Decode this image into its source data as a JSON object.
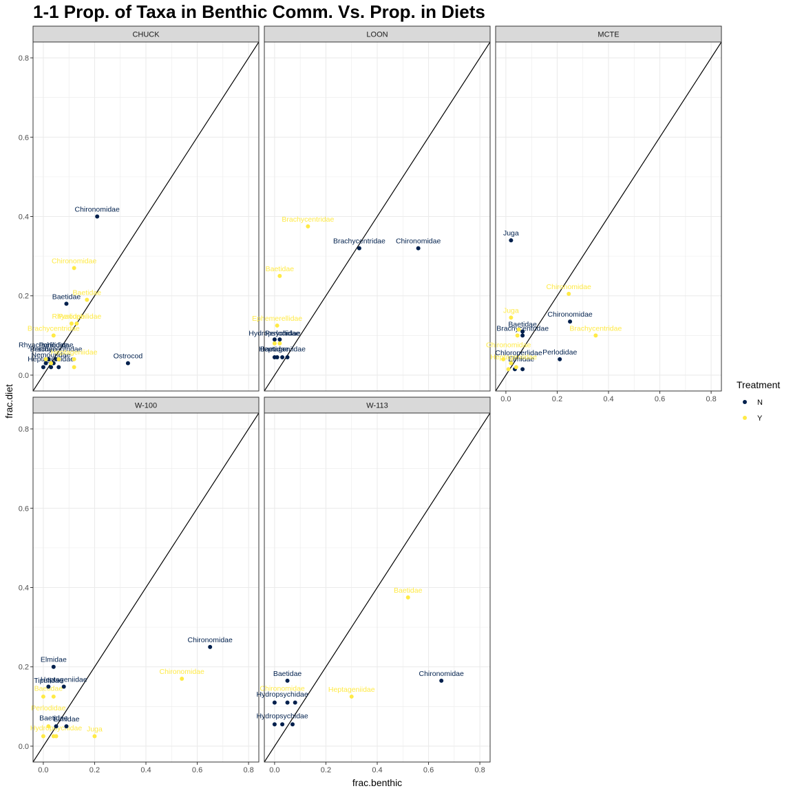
{
  "chart_data": {
    "type": "scatter",
    "title": "1-1 Prop. of Taxa in Benthic Comm. Vs. Prop. in Diets",
    "xlabel": "frac.benthic",
    "ylabel": "frac.diet",
    "xlim": [
      -0.04,
      0.84
    ],
    "ylim": [
      -0.04,
      0.84
    ],
    "x_ticks": [
      "0.0",
      "0.2",
      "0.4",
      "0.6",
      "0.8"
    ],
    "y_ticks": [
      "0.0",
      "0.2",
      "0.4",
      "0.6",
      "0.8"
    ],
    "reference_line": "y = x",
    "grid": true,
    "legend": {
      "title": "Treatment",
      "placement": "right",
      "entries": [
        {
          "name": "N",
          "color": "#00204D"
        },
        {
          "name": "Y",
          "color": "#FFEA46"
        }
      ]
    },
    "panels": [
      {
        "name": "CHUCK",
        "points": [
          {
            "x": 0.21,
            "y": 0.4,
            "t": "N",
            "label": "Chironomidae"
          },
          {
            "x": 0.09,
            "y": 0.18,
            "t": "N",
            "label": "Baetidae"
          },
          {
            "x": 0.33,
            "y": 0.03,
            "t": "N",
            "label": "Ostrocod"
          },
          {
            "x": 0.0,
            "y": 0.02,
            "t": "N",
            "label": ""
          },
          {
            "x": 0.03,
            "y": 0.02,
            "t": "N",
            "label": ""
          },
          {
            "x": 0.06,
            "y": 0.02,
            "t": "N",
            "label": ""
          },
          {
            "x": 0.02,
            "y": 0.04,
            "t": "N",
            "label": ""
          },
          {
            "x": 0.04,
            "y": 0.03,
            "t": "N",
            "label": ""
          },
          {
            "x": 0.01,
            "y": 0.03,
            "t": "N",
            "label": ""
          },
          {
            "x": 0.05,
            "y": 0.04,
            "t": "N",
            "label": ""
          },
          {
            "x": 0.12,
            "y": 0.27,
            "t": "Y",
            "label": "Chironomidae"
          },
          {
            "x": 0.17,
            "y": 0.19,
            "t": "Y",
            "label": "Baetidae"
          },
          {
            "x": 0.11,
            "y": 0.13,
            "t": "Y",
            "label": "Perlidae"
          },
          {
            "x": 0.13,
            "y": 0.13,
            "t": "Y",
            "label": "Rhyacophilidae"
          },
          {
            "x": 0.04,
            "y": 0.1,
            "t": "Y",
            "label": "Brachycentridae"
          },
          {
            "x": 0.12,
            "y": 0.04,
            "t": "Y",
            "label": "Heptageniidae"
          },
          {
            "x": 0.12,
            "y": 0.02,
            "t": "Y",
            "label": ""
          },
          {
            "x": 0.03,
            "y": 0.03,
            "t": "Y",
            "label": ""
          },
          {
            "x": 0.06,
            "y": 0.04,
            "t": "Y",
            "label": ""
          },
          {
            "x": 0.01,
            "y": 0.04,
            "t": "Y",
            "label": ""
          }
        ],
        "extra_labels": [
          {
            "x": 0.05,
            "y": 0.07,
            "t": "N",
            "label": "Perlodidae"
          },
          {
            "x": 0.0,
            "y": 0.07,
            "t": "N",
            "label": "Rhyacophilidae"
          },
          {
            "x": 0.05,
            "y": 0.06,
            "t": "N",
            "label": "Brachycentridae"
          },
          {
            "x": 0.0,
            "y": 0.06,
            "t": "N",
            "label": "Perlidae"
          },
          {
            "x": 0.03,
            "y": 0.045,
            "t": "N",
            "label": "Nemouridae"
          },
          {
            "x": 0.03,
            "y": 0.035,
            "t": "N",
            "label": "Heptageniidae"
          }
        ]
      },
      {
        "name": "LOON",
        "points": [
          {
            "x": 0.33,
            "y": 0.32,
            "t": "N",
            "label": "Brachycentridae"
          },
          {
            "x": 0.56,
            "y": 0.32,
            "t": "N",
            "label": "Chironomidae"
          },
          {
            "x": 0.0,
            "y": 0.09,
            "t": "N",
            "label": ""
          },
          {
            "x": 0.02,
            "y": 0.09,
            "t": "N",
            "label": ""
          },
          {
            "x": 0.0,
            "y": 0.045,
            "t": "N",
            "label": ""
          },
          {
            "x": 0.01,
            "y": 0.045,
            "t": "N",
            "label": ""
          },
          {
            "x": 0.03,
            "y": 0.045,
            "t": "N",
            "label": ""
          },
          {
            "x": 0.05,
            "y": 0.045,
            "t": "N",
            "label": ""
          },
          {
            "x": 0.13,
            "y": 0.375,
            "t": "Y",
            "label": "Brachycentridae"
          },
          {
            "x": 0.02,
            "y": 0.25,
            "t": "Y",
            "label": "Baetidae"
          },
          {
            "x": 0.01,
            "y": 0.125,
            "t": "Y",
            "label": "Ephemerellidae"
          },
          {
            "x": 0.0,
            "y": 0.08,
            "t": "Y",
            "label": ""
          },
          {
            "x": 0.02,
            "y": 0.08,
            "t": "Y",
            "label": ""
          }
        ],
        "extra_labels": [
          {
            "x": 0.0,
            "y": 0.1,
            "t": "N",
            "label": "Hydropsychidae"
          },
          {
            "x": 0.03,
            "y": 0.1,
            "t": "N",
            "label": "Perlodidae"
          },
          {
            "x": 0.0,
            "y": 0.06,
            "t": "N",
            "label": "Baetidae"
          },
          {
            "x": 0.03,
            "y": 0.06,
            "t": "N",
            "label": "Heptageniidae"
          }
        ]
      },
      {
        "name": "MCTE",
        "points": [
          {
            "x": 0.02,
            "y": 0.34,
            "t": "N",
            "label": "Juga"
          },
          {
            "x": 0.25,
            "y": 0.135,
            "t": "N",
            "label": "Chironomidae"
          },
          {
            "x": 0.065,
            "y": 0.11,
            "t": "N",
            "label": "Baetidae"
          },
          {
            "x": 0.065,
            "y": 0.1,
            "t": "N",
            "label": "Brachycentridae"
          },
          {
            "x": 0.21,
            "y": 0.04,
            "t": "N",
            "label": "Perlodidae"
          },
          {
            "x": 0.035,
            "y": 0.015,
            "t": "N",
            "label": ""
          },
          {
            "x": 0.065,
            "y": 0.015,
            "t": "N",
            "label": ""
          },
          {
            "x": 0.245,
            "y": 0.205,
            "t": "Y",
            "label": "Chironomidae"
          },
          {
            "x": 0.02,
            "y": 0.145,
            "t": "Y",
            "label": "Juga"
          },
          {
            "x": 0.35,
            "y": 0.1,
            "t": "Y",
            "label": "Brachycentridae"
          },
          {
            "x": 0.045,
            "y": 0.1,
            "t": "Y",
            "label": ""
          },
          {
            "x": 0.05,
            "y": 0.115,
            "t": "Y",
            "label": ""
          },
          {
            "x": -0.01,
            "y": 0.04,
            "t": "Y",
            "label": ""
          },
          {
            "x": 0.02,
            "y": 0.03,
            "t": "Y",
            "label": ""
          },
          {
            "x": 0.04,
            "y": 0.02,
            "t": "Y",
            "label": ""
          },
          {
            "x": 0.01,
            "y": 0.015,
            "t": "Y",
            "label": ""
          }
        ],
        "extra_labels": [
          {
            "x": 0.05,
            "y": 0.05,
            "t": "N",
            "label": "Chloroperlidae"
          },
          {
            "x": 0.06,
            "y": 0.035,
            "t": "N",
            "label": "Elmidae"
          },
          {
            "x": 0.01,
            "y": 0.07,
            "t": "Y",
            "label": "Chironomidae"
          },
          {
            "x": 0.03,
            "y": 0.04,
            "t": "Y",
            "label": "Heptageniidae"
          }
        ]
      },
      {
        "name": "W-100",
        "points": [
          {
            "x": 0.65,
            "y": 0.25,
            "t": "N",
            "label": "Chironomidae"
          },
          {
            "x": 0.04,
            "y": 0.2,
            "t": "N",
            "label": "Elmidae"
          },
          {
            "x": 0.08,
            "y": 0.15,
            "t": "N",
            "label": "Heptageniidae"
          },
          {
            "x": 0.02,
            "y": 0.15,
            "t": "N",
            "label": ""
          },
          {
            "x": 0.05,
            "y": 0.05,
            "t": "N",
            "label": ""
          },
          {
            "x": 0.09,
            "y": 0.05,
            "t": "N",
            "label": "Elmidae"
          },
          {
            "x": 0.54,
            "y": 0.17,
            "t": "Y",
            "label": "Chironomidae"
          },
          {
            "x": 0.2,
            "y": 0.025,
            "t": "Y",
            "label": "Juga"
          },
          {
            "x": 0.0,
            "y": 0.125,
            "t": "Y",
            "label": ""
          },
          {
            "x": 0.04,
            "y": 0.125,
            "t": "Y",
            "label": ""
          },
          {
            "x": 0.0,
            "y": 0.025,
            "t": "Y",
            "label": ""
          },
          {
            "x": 0.04,
            "y": 0.025,
            "t": "Y",
            "label": ""
          },
          {
            "x": 0.05,
            "y": 0.025,
            "t": "Y",
            "label": ""
          },
          {
            "x": 0.02,
            "y": 0.05,
            "t": "Y",
            "label": ""
          }
        ],
        "extra_labels": [
          {
            "x": 0.02,
            "y": 0.16,
            "t": "N",
            "label": "Tipulidae"
          },
          {
            "x": 0.04,
            "y": 0.065,
            "t": "N",
            "label": "Baetidae"
          },
          {
            "x": 0.02,
            "y": 0.14,
            "t": "Y",
            "label": "Baetidae"
          },
          {
            "x": 0.02,
            "y": 0.09,
            "t": "Y",
            "label": "Perlodidae"
          },
          {
            "x": 0.05,
            "y": 0.04,
            "t": "Y",
            "label": "Hydropsychidae"
          }
        ]
      },
      {
        "name": "W-113",
        "points": [
          {
            "x": 0.05,
            "y": 0.165,
            "t": "N",
            "label": "Baetidae"
          },
          {
            "x": 0.65,
            "y": 0.165,
            "t": "N",
            "label": "Chironomidae"
          },
          {
            "x": 0.0,
            "y": 0.11,
            "t": "N",
            "label": ""
          },
          {
            "x": 0.05,
            "y": 0.11,
            "t": "N",
            "label": ""
          },
          {
            "x": 0.08,
            "y": 0.11,
            "t": "N",
            "label": ""
          },
          {
            "x": 0.0,
            "y": 0.055,
            "t": "N",
            "label": ""
          },
          {
            "x": 0.03,
            "y": 0.055,
            "t": "N",
            "label": ""
          },
          {
            "x": 0.07,
            "y": 0.055,
            "t": "N",
            "label": ""
          },
          {
            "x": 0.52,
            "y": 0.375,
            "t": "Y",
            "label": "Baetidae"
          },
          {
            "x": 0.3,
            "y": 0.125,
            "t": "Y",
            "label": "Heptageniidae"
          }
        ],
        "extra_labels": [
          {
            "x": 0.03,
            "y": 0.125,
            "t": "N",
            "label": "Hydropsychidae"
          },
          {
            "x": 0.03,
            "y": 0.07,
            "t": "N",
            "label": "Hydropsychidae"
          },
          {
            "x": 0.03,
            "y": 0.14,
            "t": "Y",
            "label": "Chironomidae"
          }
        ]
      }
    ]
  }
}
